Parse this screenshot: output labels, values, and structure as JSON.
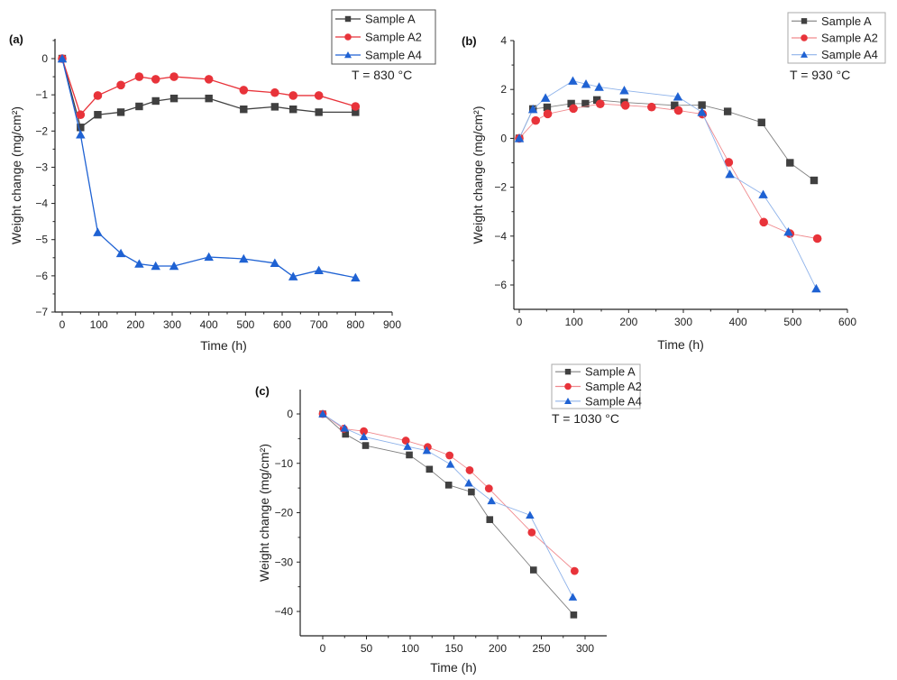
{
  "figure": {
    "panels": [
      "(a)",
      "(b)",
      "(c)"
    ]
  },
  "chart_data": [
    {
      "type": "line",
      "panel_label": "(a)",
      "annotation": "T = 830 °C",
      "xlabel": "Time (h)",
      "ylabel": "Weight change (mg/cm²)",
      "xlim": [
        -10,
        900
      ],
      "ylim": [
        -7,
        0.5
      ],
      "xticks": [
        0,
        100,
        200,
        300,
        400,
        500,
        600,
        700,
        800,
        900
      ],
      "yticks": [
        0,
        -1,
        -2,
        -3,
        -4,
        -5,
        -6,
        -7
      ],
      "grid": false,
      "legend_position": "top-right",
      "series": [
        {
          "name": "Sample A",
          "color": "#404040",
          "marker": "square",
          "x": [
            0,
            50,
            97,
            160,
            210,
            255,
            305,
            400,
            495,
            580,
            630,
            700,
            800
          ],
          "y": [
            0,
            -1.9,
            -1.55,
            -1.48,
            -1.32,
            -1.17,
            -1.1,
            -1.1,
            -1.4,
            -1.33,
            -1.4,
            -1.48,
            -1.48
          ]
        },
        {
          "name": "Sample A2",
          "color": "#e8333a",
          "marker": "circle",
          "x": [
            0,
            50,
            97,
            160,
            210,
            255,
            305,
            400,
            495,
            580,
            630,
            700,
            800
          ],
          "y": [
            0,
            -1.55,
            -1.02,
            -0.73,
            -0.5,
            -0.57,
            -0.5,
            -0.57,
            -0.87,
            -0.94,
            -1.02,
            -1.02,
            -1.32
          ]
        },
        {
          "name": "Sample A4",
          "color": "#1f62d3",
          "marker": "triangle",
          "x": [
            0,
            50,
            97,
            160,
            210,
            255,
            305,
            400,
            495,
            580,
            630,
            700,
            800
          ],
          "y": [
            0,
            -2.1,
            -4.8,
            -5.38,
            -5.67,
            -5.73,
            -5.73,
            -5.48,
            -5.53,
            -5.65,
            -6.02,
            -5.85,
            -6.05
          ]
        }
      ]
    },
    {
      "type": "line",
      "panel_label": "(b)",
      "annotation": "T = 930 °C",
      "xlabel": "Time (h)",
      "ylabel": "Weight change (mg/cm²)",
      "xlim": [
        -10,
        600
      ],
      "ylim": [
        -7,
        4
      ],
      "xticks": [
        0,
        100,
        200,
        300,
        400,
        500,
        600
      ],
      "yticks": [
        4,
        2,
        0,
        -2,
        -4,
        -6
      ],
      "grid": false,
      "legend_position": "top-right",
      "series": [
        {
          "name": "Sample A",
          "color": "#404040",
          "marker": "square",
          "x": [
            0,
            25,
            51,
            95,
            121,
            142,
            192,
            284,
            334,
            381,
            443,
            495,
            539
          ],
          "y": [
            0,
            1.2,
            1.27,
            1.42,
            1.42,
            1.57,
            1.47,
            1.35,
            1.36,
            1.1,
            0.65,
            -1.0,
            -1.72
          ]
        },
        {
          "name": "Sample A2",
          "color": "#e8333a",
          "marker": "circle",
          "x": [
            0,
            30,
            52,
            99,
            148,
            194,
            242,
            291,
            335,
            383,
            447,
            495,
            545
          ],
          "y": [
            0,
            0.73,
            1.0,
            1.22,
            1.41,
            1.35,
            1.28,
            1.14,
            0.99,
            -0.98,
            -3.43,
            -3.9,
            -4.1
          ]
        },
        {
          "name": "Sample A4",
          "color": "#1f62d3",
          "marker": "triangle",
          "x": [
            0,
            25,
            48,
            98,
            122,
            146,
            192,
            290,
            334,
            385,
            446,
            492,
            543
          ],
          "y": [
            0,
            1.19,
            1.65,
            2.35,
            2.22,
            2.1,
            1.96,
            1.7,
            1.07,
            -1.47,
            -2.3,
            -3.83,
            -6.15
          ]
        }
      ]
    },
    {
      "type": "line",
      "panel_label": "(c)",
      "annotation": "T = 1030 °C",
      "xlabel": "Time (h)",
      "ylabel": "Weight change (mg/cm²)",
      "xlim": [
        -25,
        325
      ],
      "ylim": [
        -45,
        5
      ],
      "xticks": [
        0,
        50,
        100,
        150,
        200,
        250,
        300
      ],
      "yticks": [
        0,
        -10,
        -20,
        -30,
        -40
      ],
      "grid": false,
      "legend_position": "top-right",
      "series": [
        {
          "name": "Sample A",
          "color": "#404040",
          "marker": "square",
          "x": [
            0,
            26,
            49,
            99,
            122,
            144,
            170,
            191,
            241,
            287
          ],
          "y": [
            0,
            -4.1,
            -6.4,
            -8.3,
            -11.2,
            -14.4,
            -15.8,
            -21.4,
            -31.6,
            -40.7
          ]
        },
        {
          "name": "Sample A2",
          "color": "#e8333a",
          "marker": "circle",
          "x": [
            0,
            24,
            47,
            95,
            120,
            145,
            168,
            190,
            239,
            288
          ],
          "y": [
            0,
            -3.0,
            -3.5,
            -5.4,
            -6.7,
            -8.4,
            -11.4,
            -15.1,
            -24.0,
            -31.8
          ]
        },
        {
          "name": "Sample A4",
          "color": "#1f62d3",
          "marker": "triangle",
          "x": [
            0,
            25,
            47,
            97,
            119,
            146,
            167,
            193,
            237,
            286
          ],
          "y": [
            0,
            -2.9,
            -4.6,
            -6.6,
            -7.4,
            -10.2,
            -14.0,
            -17.6,
            -20.5,
            -37.1
          ]
        }
      ]
    }
  ]
}
